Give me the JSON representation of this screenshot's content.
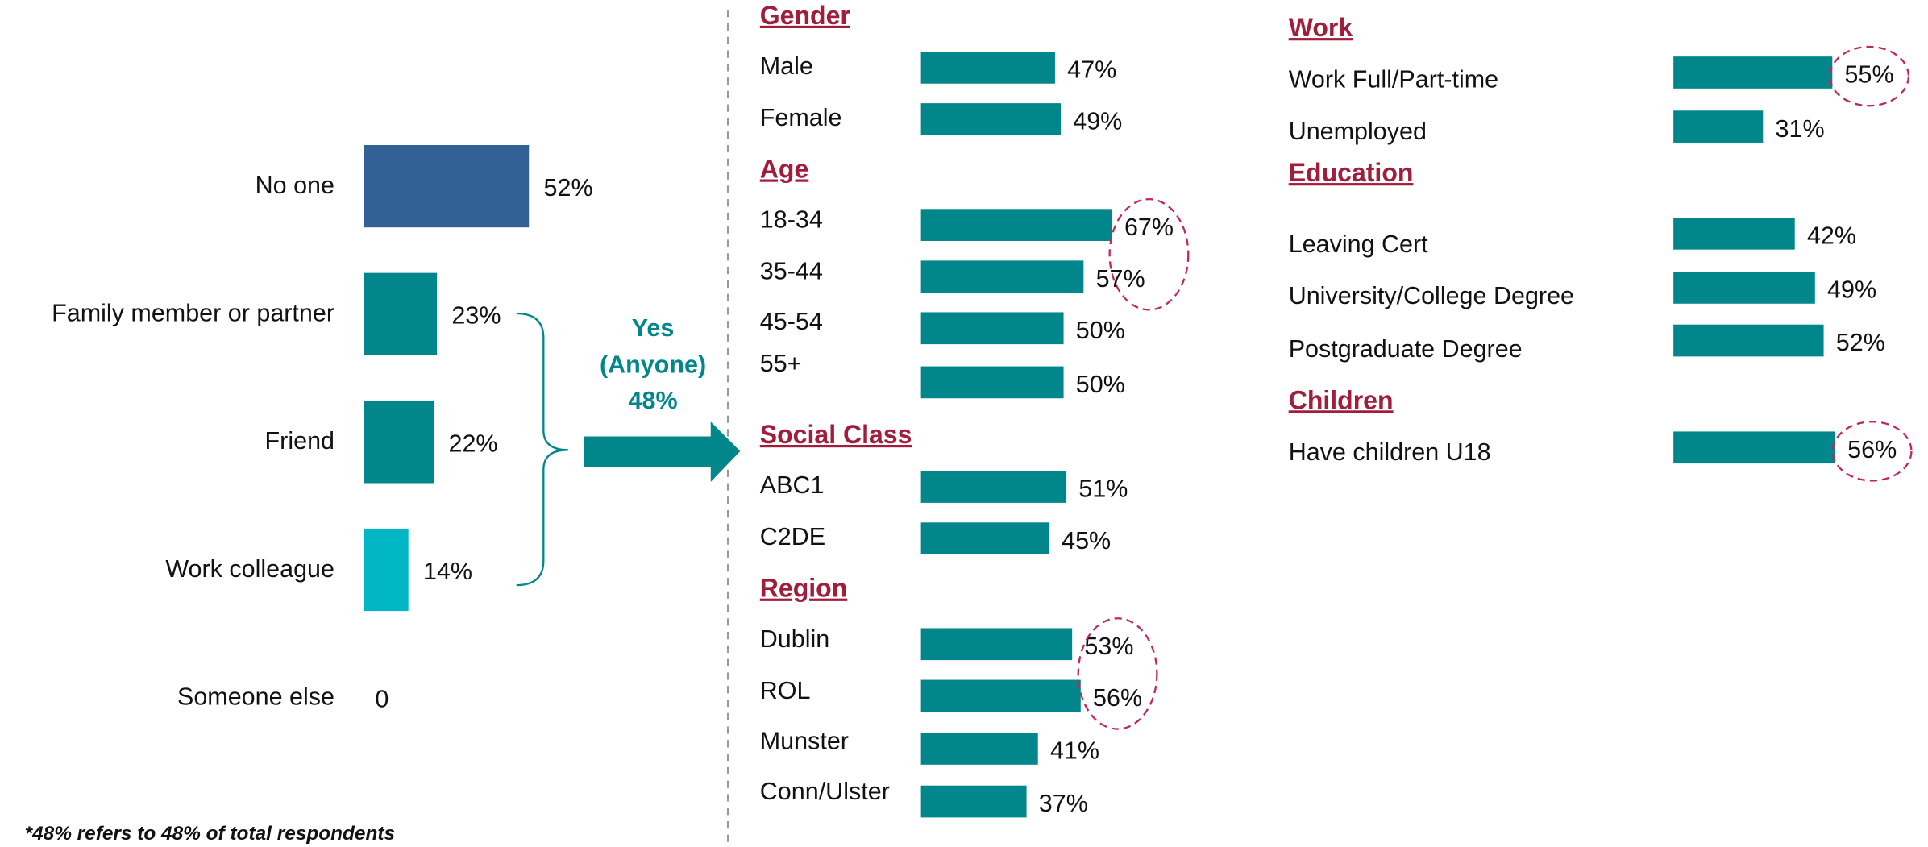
{
  "chart_data": [
    {
      "type": "bar",
      "orientation": "horizontal",
      "categories": [
        "No one",
        "Family member or partner",
        "Friend",
        "Work colleague",
        "Someone else"
      ],
      "values": [
        52,
        23,
        22,
        14,
        0
      ],
      "value_labels": [
        "52%",
        "23%",
        "22%",
        "14%",
        "0"
      ],
      "colors": [
        "#336195",
        "#00868b",
        "#00868b",
        "#00b6c4",
        "#00b6c4"
      ],
      "annotation": [
        "Yes",
        "(Anyone)",
        "48%"
      ],
      "footnote": "*48% refers to 48% of total respondents"
    },
    {
      "type": "bar",
      "orientation": "horizontal",
      "color": "#00868b",
      "highlight_color": "#c0275a",
      "groups": [
        {
          "title": "Gender",
          "categories": [
            "Male",
            "Female"
          ],
          "values": [
            47,
            49
          ],
          "value_labels": [
            "47%",
            "49%"
          ]
        },
        {
          "title": "Age",
          "categories": [
            "18-34",
            "35-44",
            "45-54",
            "55+"
          ],
          "values": [
            67,
            57,
            50,
            50
          ],
          "value_labels": [
            "67%",
            "57%",
            "50%",
            "50%"
          ],
          "circled": [
            0,
            1
          ]
        },
        {
          "title": "Social Class",
          "categories": [
            "ABC1",
            "C2DE"
          ],
          "values": [
            51,
            45
          ],
          "value_labels": [
            "51%",
            "45%"
          ]
        },
        {
          "title": "Region",
          "categories": [
            "Dublin",
            "ROL",
            "Munster",
            "Conn/Ulster"
          ],
          "values": [
            53,
            56,
            41,
            37
          ],
          "value_labels": [
            "53%",
            "56%",
            "41%",
            "37%"
          ],
          "circled": [
            0,
            1
          ]
        }
      ]
    },
    {
      "type": "bar",
      "orientation": "horizontal",
      "color": "#00868b",
      "highlight_color": "#c0275a",
      "groups": [
        {
          "title": "Work",
          "categories": [
            "Work Full/Part-time",
            "Unemployed"
          ],
          "values": [
            55,
            31
          ],
          "value_labels": [
            "55%",
            "31%"
          ],
          "circled": [
            0
          ]
        },
        {
          "title": "Education",
          "categories": [
            "Leaving Cert",
            "University/College Degree",
            "Postgraduate Degree"
          ],
          "values": [
            42,
            49,
            52
          ],
          "value_labels": [
            "42%",
            "49%",
            "52%"
          ]
        },
        {
          "title": "Children",
          "categories": [
            "Have children U18"
          ],
          "values": [
            56
          ],
          "value_labels": [
            "56%"
          ],
          "circled": [
            0
          ]
        }
      ]
    }
  ]
}
